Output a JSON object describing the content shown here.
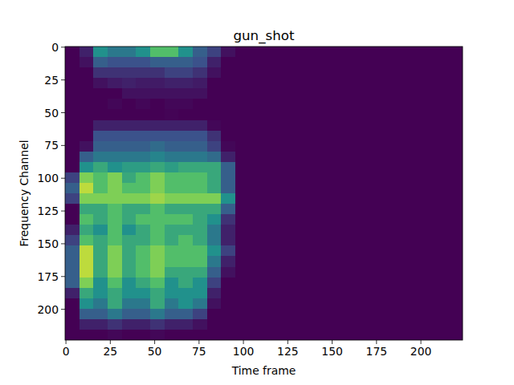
{
  "chart_data": {
    "type": "heatmap",
    "title": "gun_shot",
    "x_label": "Time frame",
    "y_label": "Frequency Channel",
    "xlim": [
      -0.5,
      223.5
    ],
    "ylim": [
      223.5,
      -0.5
    ],
    "xticks": [
      0,
      25,
      50,
      75,
      100,
      125,
      150,
      175,
      200
    ],
    "yticks": [
      0,
      25,
      50,
      75,
      100,
      125,
      150,
      175,
      200
    ],
    "zlim": [
      0,
      1
    ],
    "x": [
      0,
      8,
      16,
      24,
      32,
      40,
      48,
      56,
      64,
      72,
      80,
      88,
      96,
      104,
      112,
      120,
      128,
      136,
      144,
      152,
      160,
      168,
      176,
      184,
      192,
      200,
      208,
      216
    ],
    "y": [
      0,
      8,
      16,
      24,
      32,
      40,
      48,
      56,
      64,
      72,
      80,
      88,
      96,
      104,
      112,
      120,
      128,
      136,
      144,
      152,
      160,
      168,
      176,
      184,
      192,
      200,
      208,
      216
    ],
    "cells": [
      [
        0,
        0.1,
        0.5,
        0.4,
        0.4,
        0.5,
        0.7,
        0.7,
        0.5,
        0.3,
        0.2,
        0.05,
        0,
        0,
        0,
        0,
        0,
        0,
        0,
        0,
        0,
        0,
        0,
        0,
        0,
        0,
        0,
        0
      ],
      [
        0,
        0.05,
        0.3,
        0.25,
        0.25,
        0.25,
        0.3,
        0.3,
        0.3,
        0.25,
        0.1,
        0,
        0,
        0,
        0,
        0,
        0,
        0,
        0,
        0,
        0,
        0,
        0,
        0,
        0,
        0,
        0,
        0
      ],
      [
        0,
        0,
        0.15,
        0.15,
        0.15,
        0.15,
        0.15,
        0.2,
        0.2,
        0.15,
        0.05,
        0,
        0,
        0,
        0,
        0,
        0,
        0,
        0,
        0,
        0,
        0,
        0,
        0,
        0,
        0,
        0,
        0
      ],
      [
        0,
        0,
        0.05,
        0.08,
        0.1,
        0.08,
        0.08,
        0.1,
        0.1,
        0.08,
        0,
        0,
        0,
        0,
        0,
        0,
        0,
        0,
        0,
        0,
        0,
        0,
        0,
        0,
        0,
        0,
        0,
        0
      ],
      [
        0,
        0,
        0,
        0,
        0.05,
        0.05,
        0.05,
        0.05,
        0.05,
        0.05,
        0,
        0,
        0,
        0,
        0,
        0,
        0,
        0,
        0,
        0,
        0,
        0,
        0,
        0,
        0,
        0,
        0,
        0
      ],
      [
        0,
        0,
        0,
        0.02,
        0,
        0.02,
        0,
        0.02,
        0.02,
        0,
        0,
        0,
        0,
        0,
        0,
        0,
        0,
        0,
        0,
        0,
        0,
        0,
        0,
        0,
        0,
        0,
        0,
        0
      ],
      [
        0,
        0,
        0,
        0,
        0,
        0,
        0,
        0.01,
        0,
        0,
        0,
        0,
        0,
        0,
        0,
        0,
        0,
        0,
        0,
        0,
        0,
        0,
        0,
        0,
        0,
        0,
        0,
        0
      ],
      [
        0,
        0,
        0.1,
        0.1,
        0.1,
        0.1,
        0.1,
        0.1,
        0.1,
        0.1,
        0.02,
        0,
        0,
        0,
        0,
        0,
        0,
        0,
        0,
        0,
        0,
        0,
        0,
        0,
        0,
        0,
        0,
        0
      ],
      [
        0,
        0,
        0.25,
        0.25,
        0.25,
        0.25,
        0.25,
        0.25,
        0.25,
        0.25,
        0.15,
        0,
        0,
        0,
        0,
        0,
        0,
        0,
        0,
        0,
        0,
        0,
        0,
        0,
        0,
        0,
        0,
        0
      ],
      [
        0,
        0.05,
        0.3,
        0.3,
        0.3,
        0.3,
        0.35,
        0.3,
        0.3,
        0.3,
        0.2,
        0.02,
        0,
        0,
        0,
        0,
        0,
        0,
        0,
        0,
        0,
        0,
        0,
        0,
        0,
        0,
        0,
        0
      ],
      [
        0,
        0.3,
        0.4,
        0.4,
        0.4,
        0.4,
        0.45,
        0.4,
        0.4,
        0.4,
        0.35,
        0.1,
        0,
        0,
        0,
        0,
        0,
        0,
        0,
        0,
        0,
        0,
        0,
        0,
        0,
        0,
        0,
        0
      ],
      [
        0,
        0.5,
        0.6,
        0.5,
        0.55,
        0.55,
        0.6,
        0.55,
        0.6,
        0.6,
        0.6,
        0.3,
        0,
        0,
        0,
        0,
        0,
        0,
        0,
        0,
        0,
        0,
        0,
        0,
        0,
        0,
        0,
        0
      ],
      [
        0.2,
        0.8,
        0.7,
        0.8,
        0.6,
        0.7,
        0.8,
        0.7,
        0.7,
        0.7,
        0.6,
        0.3,
        0,
        0,
        0,
        0,
        0,
        0,
        0,
        0,
        0,
        0,
        0,
        0,
        0,
        0,
        0,
        0
      ],
      [
        0.3,
        0.9,
        0.7,
        0.8,
        0.7,
        0.7,
        0.8,
        0.7,
        0.7,
        0.7,
        0.6,
        0.3,
        0,
        0,
        0,
        0,
        0,
        0,
        0,
        0,
        0,
        0,
        0,
        0,
        0,
        0,
        0,
        0
      ],
      [
        0.2,
        0.8,
        0.8,
        0.8,
        0.8,
        0.8,
        0.85,
        0.8,
        0.8,
        0.8,
        0.8,
        0.5,
        0,
        0,
        0,
        0,
        0,
        0,
        0,
        0,
        0,
        0,
        0,
        0,
        0,
        0,
        0,
        0
      ],
      [
        0,
        0.6,
        0.6,
        0.7,
        0.6,
        0.6,
        0.7,
        0.6,
        0.6,
        0.6,
        0.6,
        0.3,
        0,
        0,
        0,
        0,
        0,
        0,
        0,
        0,
        0,
        0,
        0,
        0,
        0,
        0,
        0,
        0
      ],
      [
        0,
        0.7,
        0.6,
        0.7,
        0.6,
        0.7,
        0.7,
        0.7,
        0.7,
        0.6,
        0.5,
        0.15,
        0,
        0,
        0,
        0,
        0,
        0,
        0,
        0,
        0,
        0,
        0,
        0,
        0,
        0,
        0,
        0
      ],
      [
        0.1,
        0.6,
        0.5,
        0.7,
        0.5,
        0.6,
        0.7,
        0.6,
        0.6,
        0.6,
        0.4,
        0.1,
        0,
        0,
        0,
        0,
        0,
        0,
        0,
        0,
        0,
        0,
        0,
        0,
        0,
        0,
        0,
        0
      ],
      [
        0.2,
        0.7,
        0.6,
        0.7,
        0.6,
        0.6,
        0.7,
        0.6,
        0.7,
        0.6,
        0.4,
        0.1,
        0,
        0,
        0,
        0,
        0,
        0,
        0,
        0,
        0,
        0,
        0,
        0,
        0,
        0,
        0,
        0
      ],
      [
        0.3,
        0.9,
        0.6,
        0.8,
        0.6,
        0.7,
        0.8,
        0.7,
        0.7,
        0.7,
        0.5,
        0.2,
        0,
        0,
        0,
        0,
        0,
        0,
        0,
        0,
        0,
        0,
        0,
        0,
        0,
        0,
        0,
        0
      ],
      [
        0.3,
        0.9,
        0.6,
        0.8,
        0.6,
        0.7,
        0.8,
        0.7,
        0.7,
        0.7,
        0.4,
        0.1,
        0,
        0,
        0,
        0,
        0,
        0,
        0,
        0,
        0,
        0,
        0,
        0,
        0,
        0,
        0,
        0
      ],
      [
        0.3,
        0.9,
        0.6,
        0.8,
        0.6,
        0.7,
        0.8,
        0.6,
        0.6,
        0.6,
        0.3,
        0.05,
        0,
        0,
        0,
        0,
        0,
        0,
        0,
        0,
        0,
        0,
        0,
        0,
        0,
        0,
        0,
        0
      ],
      [
        0.3,
        0.8,
        0.5,
        0.7,
        0.5,
        0.6,
        0.7,
        0.5,
        0.6,
        0.5,
        0.2,
        0,
        0,
        0,
        0,
        0,
        0,
        0,
        0,
        0,
        0,
        0,
        0,
        0,
        0,
        0,
        0,
        0
      ],
      [
        0.1,
        0.6,
        0.5,
        0.6,
        0.5,
        0.5,
        0.6,
        0.5,
        0.5,
        0.5,
        0.1,
        0,
        0,
        0,
        0,
        0,
        0,
        0,
        0,
        0,
        0,
        0,
        0,
        0,
        0,
        0,
        0,
        0
      ],
      [
        0,
        0.5,
        0.4,
        0.6,
        0.4,
        0.4,
        0.6,
        0.4,
        0.5,
        0.4,
        0.05,
        0,
        0,
        0,
        0,
        0,
        0,
        0,
        0,
        0,
        0,
        0,
        0,
        0,
        0,
        0,
        0,
        0
      ],
      [
        0,
        0.3,
        0.3,
        0.4,
        0.3,
        0.3,
        0.4,
        0.3,
        0.3,
        0.2,
        0,
        0,
        0,
        0,
        0,
        0,
        0,
        0,
        0,
        0,
        0,
        0,
        0,
        0,
        0,
        0,
        0,
        0
      ],
      [
        0,
        0.1,
        0.1,
        0.15,
        0.1,
        0.1,
        0.15,
        0.1,
        0.1,
        0.05,
        0,
        0,
        0,
        0,
        0,
        0,
        0,
        0,
        0,
        0,
        0,
        0,
        0,
        0,
        0,
        0,
        0,
        0
      ],
      [
        0,
        0,
        0,
        0.02,
        0,
        0,
        0.02,
        0,
        0,
        0,
        0,
        0,
        0,
        0,
        0,
        0,
        0,
        0,
        0,
        0,
        0,
        0,
        0,
        0,
        0,
        0,
        0,
        0
      ]
    ]
  }
}
